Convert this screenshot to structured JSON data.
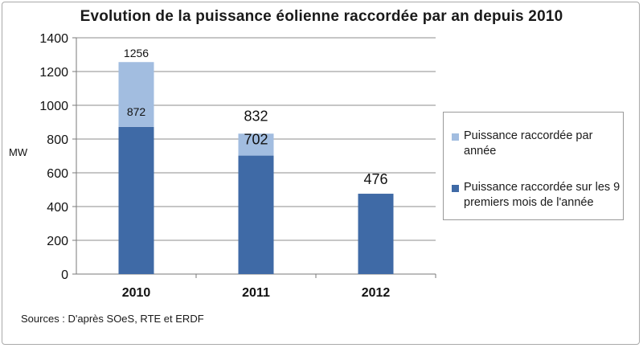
{
  "chart_data": {
    "type": "bar",
    "stacked": true,
    "title": "Evolution de la puissance éolienne raccordée par an depuis 2010",
    "ylabel": "MW",
    "xlabel": "",
    "categories": [
      "2010",
      "2011",
      "2012"
    ],
    "ylim": [
      0,
      1400
    ],
    "yticks": [
      0,
      200,
      400,
      600,
      800,
      1000,
      1200,
      1400
    ],
    "grid": true,
    "legend_position": "right",
    "series": [
      {
        "name": "Puissance raccordée sur les 9 premiers mois de l'année",
        "values": [
          872,
          702,
          476
        ],
        "color": "#3f6aa6"
      },
      {
        "name": "Puissance raccordée par année",
        "values": [
          384,
          130,
          null
        ],
        "totals": [
          1256,
          832,
          null
        ],
        "color": "#a2bde0"
      }
    ],
    "data_labels": [
      {
        "text": "1256",
        "category": "2010",
        "value": 1256
      },
      {
        "text": "872",
        "category": "2010",
        "value": 872
      },
      {
        "text": "832",
        "category": "2011",
        "value": 832
      },
      {
        "text": "702",
        "category": "2011",
        "value": 702
      },
      {
        "text": "476",
        "category": "2012",
        "value": 476
      }
    ],
    "source": "Sources : D'après SOeS, RTE et ERDF"
  }
}
